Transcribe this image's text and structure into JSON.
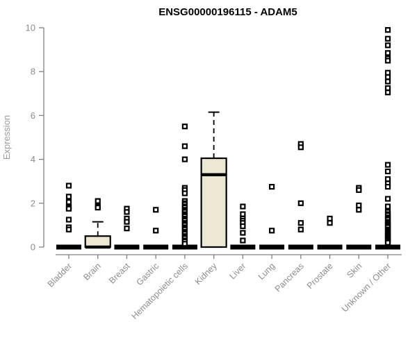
{
  "chart_data": {
    "type": "box",
    "title": "ENSG00000196115 - ADAM5",
    "ylabel": "Expression",
    "ylim": [
      0,
      10
    ],
    "yticks": [
      0,
      2,
      4,
      6,
      8,
      10
    ],
    "grid": false,
    "legend": "none",
    "box_fill": "#ece7d2",
    "box_stroke": "#000000",
    "axis_color": "#808080",
    "label_color": "#8c8c8c",
    "categories": [
      "Bladder",
      "Brain",
      "Breast",
      "Gastric",
      "Hematopoietic cells",
      "Kidney",
      "Liver",
      "Lung",
      "Pancreas",
      "Prostate",
      "Skin",
      "Unknown / Other"
    ],
    "series": [
      {
        "label": "Bladder",
        "q1": 0,
        "median": 0,
        "q3": 0,
        "whisker_low": 0,
        "whisker_high": 0,
        "outliers": [
          2.8,
          2.3,
          2.05,
          1.85,
          1.8,
          1.75,
          1.25,
          0.9,
          0.8
        ]
      },
      {
        "label": "Brain",
        "q1": 0,
        "median": 0,
        "q3": 0.5,
        "whisker_low": 0,
        "whisker_high": 1.15,
        "outliers": [
          2.1,
          1.85,
          1.8
        ]
      },
      {
        "label": "Breast",
        "q1": 0,
        "median": 0,
        "q3": 0,
        "whisker_low": 0,
        "whisker_high": 0,
        "outliers": [
          1.75,
          1.6,
          1.3,
          1.15,
          0.85
        ]
      },
      {
        "label": "Gastric",
        "q1": 0,
        "median": 0,
        "q3": 0,
        "whisker_low": 0,
        "whisker_high": 0,
        "outliers": [
          1.7,
          0.75
        ]
      },
      {
        "label": "Hematopoietic cells",
        "q1": 0,
        "median": 0,
        "q3": 0,
        "whisker_low": 0,
        "whisker_high": 0,
        "outliers": [
          5.5,
          4.6,
          4.0,
          2.7,
          2.6,
          2.45,
          2.1,
          2.0,
          1.95,
          1.85,
          1.8,
          1.7,
          1.65,
          1.6,
          1.5,
          1.45,
          1.4,
          1.3,
          1.25,
          1.2,
          1.1,
          1.05,
          1.0,
          0.9,
          0.85,
          0.8,
          0.7,
          0.65,
          0.6,
          0.5,
          0.45,
          0.4,
          0.3,
          0.25,
          0.15
        ]
      },
      {
        "label": "Kidney",
        "q1": 0,
        "median": 3.3,
        "q3": 4.05,
        "whisker_low": 0,
        "whisker_high": 6.15,
        "outliers": []
      },
      {
        "label": "Liver",
        "q1": 0,
        "median": 0,
        "q3": 0,
        "whisker_low": 0,
        "whisker_high": 0,
        "outliers": [
          1.85,
          1.5,
          1.3,
          1.2,
          1.1,
          0.95,
          0.65,
          0.3
        ]
      },
      {
        "label": "Lung",
        "q1": 0,
        "median": 0,
        "q3": 0,
        "whisker_low": 0,
        "whisker_high": 0,
        "outliers": [
          2.75,
          0.75
        ]
      },
      {
        "label": "Pancreas",
        "q1": 0,
        "median": 0,
        "q3": 0,
        "whisker_low": 0,
        "whisker_high": 0,
        "outliers": [
          4.7,
          4.55,
          2.0,
          1.1,
          0.8
        ]
      },
      {
        "label": "Prostate",
        "q1": 0,
        "median": 0,
        "q3": 0,
        "whisker_low": 0,
        "whisker_high": 0,
        "outliers": [
          1.3,
          1.1
        ]
      },
      {
        "label": "Skin",
        "q1": 0,
        "median": 0,
        "q3": 0,
        "whisker_low": 0,
        "whisker_high": 0,
        "outliers": [
          2.7,
          2.6,
          1.9,
          1.7
        ]
      },
      {
        "label": "Unknown / Other",
        "q1": 0,
        "median": 0,
        "q3": 0,
        "whisker_low": 0,
        "whisker_high": 0,
        "outliers": [
          9.9,
          9.5,
          9.2,
          8.85,
          8.6,
          8.5,
          7.95,
          7.75,
          7.55,
          7.25,
          7.05,
          3.75,
          3.45,
          3.1,
          2.9,
          2.75,
          2.2,
          1.85,
          1.6,
          1.5,
          1.45,
          1.35,
          1.3,
          1.25,
          1.15,
          1.1,
          1.05,
          1.0,
          0.95,
          0.9,
          0.8,
          0.75,
          0.7,
          0.65,
          0.6,
          0.55,
          0.5,
          0.45,
          0.4,
          0.35,
          0.3,
          0.25,
          0.2
        ]
      }
    ]
  }
}
